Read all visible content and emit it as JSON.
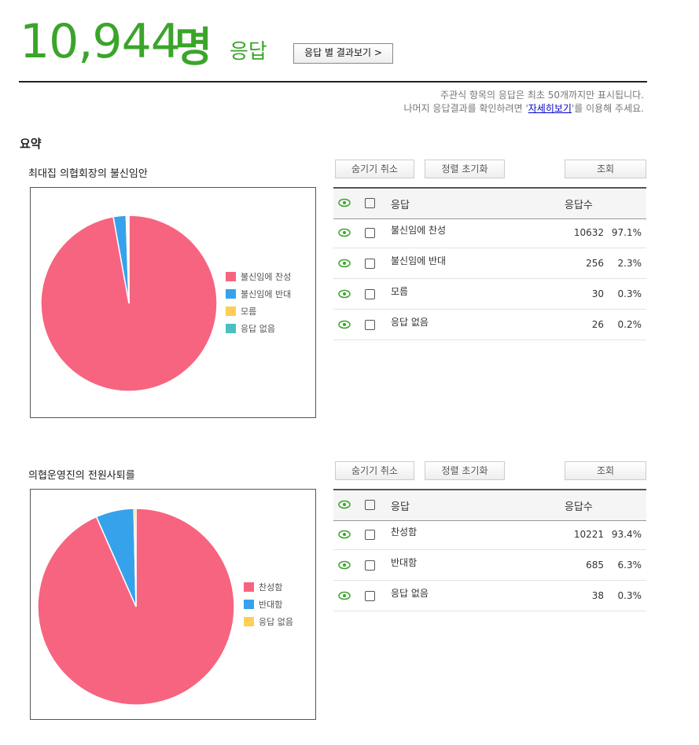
{
  "header": {
    "count": "10,944",
    "unit": "명",
    "label": "응답",
    "button": "응답 별 결과보기 >"
  },
  "notice": {
    "line1": "주관식 항목의 응답은 최초 50개까지만 표시됩니다.",
    "line2_before": "나머지 응답결과를 확인하려면 '",
    "link": "자세히보기",
    "line2_after": "'를 이용해 주세요."
  },
  "summary_title": "요약",
  "sections": [
    {
      "title": "최대집 의협회장의 불신임안",
      "buttons": [
        "숨기기 취소",
        "정렬 초기화",
        "조회"
      ],
      "columns": [
        "응답",
        "응답수"
      ],
      "rows": [
        {
          "label": "불신임에 찬성",
          "count": 10632,
          "percent": "97.1%",
          "color": "#f7647f"
        },
        {
          "label": "불신임에 반대",
          "count": 256,
          "percent": "2.3%",
          "color": "#36a2eb"
        },
        {
          "label": "모름",
          "count": 30,
          "percent": "0.3%",
          "color": "#ffce56"
        },
        {
          "label": "응답 없음",
          "count": 26,
          "percent": "0.2%",
          "color": "#4bc0c0"
        }
      ]
    },
    {
      "title": "의협운영진의 전원사퇴를",
      "buttons": [
        "숨기기 취소",
        "정렬 초기화",
        "조회"
      ],
      "columns": [
        "응답",
        "응답수"
      ],
      "rows": [
        {
          "label": "찬성함",
          "count": 10221,
          "percent": "93.4%",
          "color": "#f7647f"
        },
        {
          "label": "반대함",
          "count": 685,
          "percent": "6.3%",
          "color": "#36a2eb"
        },
        {
          "label": "응답 없음",
          "count": 38,
          "percent": "0.3%",
          "color": "#ffce56"
        }
      ]
    }
  ]
}
